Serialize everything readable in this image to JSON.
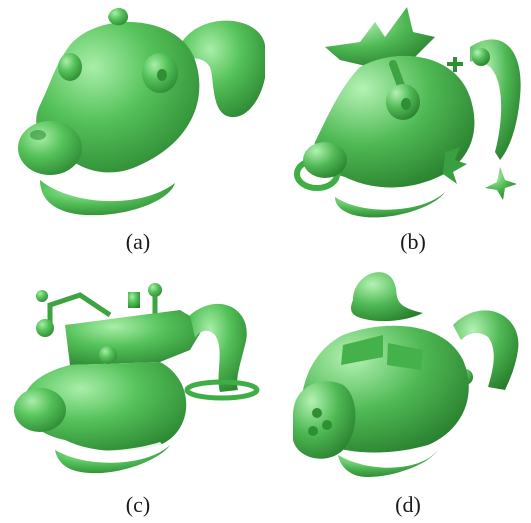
{
  "panels": [
    {
      "caption": "(a)"
    },
    {
      "caption": "(b)"
    },
    {
      "caption": "(c)"
    },
    {
      "caption": "(d)"
    }
  ],
  "colors": {
    "model_fill": "#4cbd52",
    "model_dark": "#2e8f35",
    "model_light": "#8fe08f"
  },
  "icons": {
    "model": "green-3d-cartoon-dog-head"
  }
}
